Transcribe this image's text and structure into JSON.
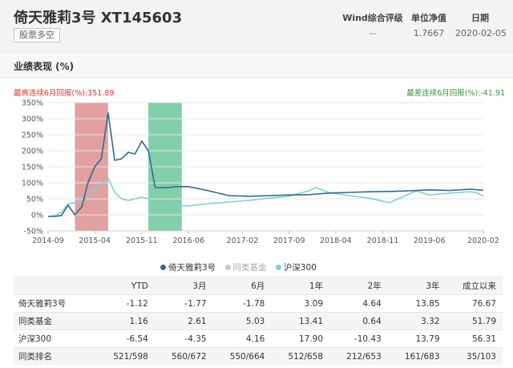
{
  "header": {
    "fund_name": "倚天雅莉3号 XT145603",
    "tag": "股票多空",
    "metrics": [
      {
        "label": "Wind综合评级",
        "value": "--"
      },
      {
        "label": "单位净值",
        "value": "1.7667"
      },
      {
        "label": "日期",
        "value": "2020-02-05"
      }
    ]
  },
  "panel": {
    "title": "业绩表现 (%)",
    "max_label": "最高连续6月回报(%):351.89",
    "min_label": "最差连续6月回报(%):-41.91"
  },
  "colors": {
    "fund": "#2a6b98",
    "peer": "#c8c8c8",
    "index": "#7fd1d2",
    "max_band": "#d98080",
    "min_band": "#58c08c"
  },
  "chart_data": {
    "type": "line",
    "y_ticks": [
      "350%",
      "300%",
      "250%",
      "200%",
      "150%",
      "100%",
      "50%",
      "0%",
      "-50%"
    ],
    "ylim": [
      -50,
      350
    ],
    "x_ticks": [
      "2014-09",
      "2015-04",
      "2015-11",
      "2016-06",
      "2017-02",
      "2017-09",
      "2018-04",
      "2018-11",
      "2019-06",
      "2020-02"
    ],
    "highlight_max": {
      "from": "2015-01",
      "to": "2015-06"
    },
    "highlight_min": {
      "from": "2015-12",
      "to": "2016-05"
    },
    "series": [
      {
        "name": "倚天雅莉3号",
        "active": true,
        "points": [
          [
            "2014-09",
            -5
          ],
          [
            "2014-10",
            -5
          ],
          [
            "2014-11",
            -2
          ],
          [
            "2014-12",
            30
          ],
          [
            "2015-01",
            0
          ],
          [
            "2015-02",
            25
          ],
          [
            "2015-03",
            100
          ],
          [
            "2015-04",
            150
          ],
          [
            "2015-05",
            175
          ],
          [
            "2015-06",
            318
          ],
          [
            "2015-07",
            170
          ],
          [
            "2015-08",
            175
          ],
          [
            "2015-09",
            195
          ],
          [
            "2015-10",
            190
          ],
          [
            "2015-11",
            230
          ],
          [
            "2015-12",
            200
          ],
          [
            "2016-01",
            85
          ],
          [
            "2016-02",
            85
          ],
          [
            "2016-03",
            85
          ],
          [
            "2016-04",
            88
          ],
          [
            "2016-06",
            88
          ],
          [
            "2016-09",
            75
          ],
          [
            "2016-12",
            60
          ],
          [
            "2017-03",
            58
          ],
          [
            "2017-06",
            60
          ],
          [
            "2017-09",
            62
          ],
          [
            "2017-12",
            63
          ],
          [
            "2018-03",
            68
          ],
          [
            "2018-06",
            70
          ],
          [
            "2018-09",
            72
          ],
          [
            "2018-12",
            73
          ],
          [
            "2019-03",
            75
          ],
          [
            "2019-06",
            78
          ],
          [
            "2019-09",
            76
          ],
          [
            "2019-12",
            80
          ],
          [
            "2020-02",
            77
          ]
        ]
      },
      {
        "name": "同类基金",
        "active": false,
        "points": []
      },
      {
        "name": "沪深300",
        "active": true,
        "points": [
          [
            "2014-09",
            -5
          ],
          [
            "2014-10",
            -3
          ],
          [
            "2014-11",
            8
          ],
          [
            "2014-12",
            35
          ],
          [
            "2015-01",
            38
          ],
          [
            "2015-02",
            45
          ],
          [
            "2015-03",
            55
          ],
          [
            "2015-04",
            78
          ],
          [
            "2015-05",
            95
          ],
          [
            "2015-06",
            115
          ],
          [
            "2015-07",
            70
          ],
          [
            "2015-08",
            50
          ],
          [
            "2015-09",
            45
          ],
          [
            "2015-10",
            50
          ],
          [
            "2015-11",
            55
          ],
          [
            "2015-12",
            50
          ],
          [
            "2016-01",
            25
          ],
          [
            "2016-02",
            22
          ],
          [
            "2016-03",
            28
          ],
          [
            "2016-04",
            30
          ],
          [
            "2016-06",
            28
          ],
          [
            "2016-09",
            35
          ],
          [
            "2016-12",
            40
          ],
          [
            "2017-03",
            45
          ],
          [
            "2017-06",
            52
          ],
          [
            "2017-09",
            58
          ],
          [
            "2017-12",
            75
          ],
          [
            "2018-01",
            85
          ],
          [
            "2018-03",
            70
          ],
          [
            "2018-06",
            60
          ],
          [
            "2018-09",
            52
          ],
          [
            "2018-12",
            38
          ],
          [
            "2019-03",
            65
          ],
          [
            "2019-04",
            75
          ],
          [
            "2019-06",
            62
          ],
          [
            "2019-09",
            68
          ],
          [
            "2019-12",
            72
          ],
          [
            "2020-01",
            70
          ],
          [
            "2020-02",
            58
          ]
        ]
      }
    ]
  },
  "table": {
    "headers": [
      "",
      "YTD",
      "3月",
      "6月",
      "1年",
      "2年",
      "3年",
      "成立以来"
    ],
    "rows": [
      [
        "倚天雅莉3号",
        "-1.12",
        "-1.77",
        "-1.78",
        "3.09",
        "4.64",
        "13.85",
        "76.67"
      ],
      [
        "同类基金",
        "1.16",
        "2.61",
        "5.03",
        "13.41",
        "0.64",
        "3.32",
        "51.79"
      ],
      [
        "沪深300",
        "-6.54",
        "-4.35",
        "4.16",
        "17.90",
        "-10.43",
        "13.79",
        "56.31"
      ],
      [
        "同类排名",
        "521/598",
        "560/672",
        "550/664",
        "512/658",
        "212/653",
        "161/683",
        "35/103"
      ]
    ]
  }
}
